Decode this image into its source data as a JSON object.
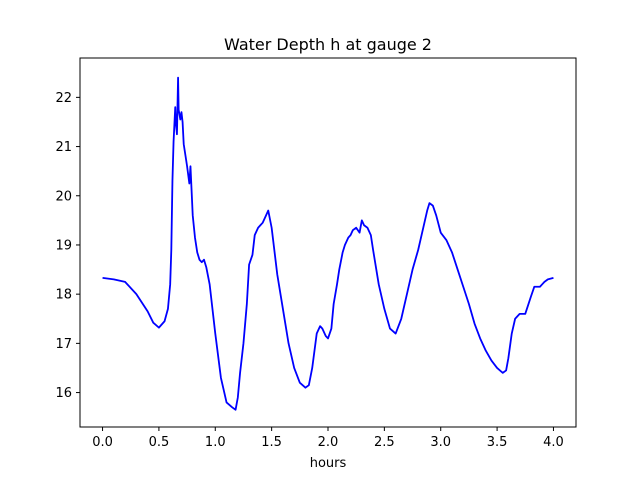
{
  "chart_data": {
    "type": "line",
    "title": "Water Depth h at gauge 2",
    "xlabel": "hours",
    "ylabel": "",
    "xlim": [
      -0.2,
      4.2
    ],
    "ylim": [
      15.3,
      22.8
    ],
    "xticks": [
      0.0,
      0.5,
      1.0,
      1.5,
      2.0,
      2.5,
      3.0,
      3.5,
      4.0
    ],
    "xtick_labels": [
      "0.0",
      "0.5",
      "1.0",
      "1.5",
      "2.0",
      "2.5",
      "3.0",
      "3.5",
      "4.0"
    ],
    "yticks": [
      16,
      17,
      18,
      19,
      20,
      21,
      22
    ],
    "ytick_labels": [
      "16",
      "17",
      "18",
      "19",
      "20",
      "21",
      "22"
    ],
    "grid": false,
    "series": [
      {
        "color": "#0000ff",
        "x": [
          0.0,
          0.1,
          0.2,
          0.3,
          0.4,
          0.45,
          0.5,
          0.55,
          0.58,
          0.6,
          0.61,
          0.615,
          0.62,
          0.63,
          0.645,
          0.65,
          0.66,
          0.67,
          0.675,
          0.69,
          0.7,
          0.71,
          0.72,
          0.73,
          0.75,
          0.77,
          0.78,
          0.79,
          0.8,
          0.82,
          0.84,
          0.86,
          0.88,
          0.9,
          0.92,
          0.95,
          1.0,
          1.05,
          1.1,
          1.15,
          1.18,
          1.2,
          1.22,
          1.25,
          1.28,
          1.3,
          1.33,
          1.35,
          1.38,
          1.4,
          1.42,
          1.45,
          1.47,
          1.5,
          1.55,
          1.6,
          1.65,
          1.7,
          1.75,
          1.8,
          1.83,
          1.86,
          1.9,
          1.93,
          1.95,
          1.98,
          2.0,
          2.03,
          2.05,
          2.08,
          2.1,
          2.13,
          2.15,
          2.18,
          2.2,
          2.22,
          2.25,
          2.28,
          2.3,
          2.32,
          2.35,
          2.38,
          2.4,
          2.45,
          2.5,
          2.55,
          2.6,
          2.65,
          2.7,
          2.75,
          2.8,
          2.85,
          2.88,
          2.9,
          2.93,
          2.96,
          3.0,
          3.05,
          3.1,
          3.15,
          3.2,
          3.25,
          3.3,
          3.35,
          3.4,
          3.45,
          3.5,
          3.55,
          3.58,
          3.6,
          3.63,
          3.66,
          3.7,
          3.75,
          3.8,
          3.83,
          3.85,
          3.88,
          3.9,
          3.92,
          3.95,
          4.0
        ],
        "y": [
          18.33,
          18.3,
          18.25,
          18.0,
          17.65,
          17.42,
          17.32,
          17.45,
          17.7,
          18.2,
          18.9,
          19.6,
          20.3,
          21.1,
          21.8,
          21.5,
          21.25,
          22.4,
          21.75,
          21.55,
          21.7,
          21.5,
          21.05,
          20.9,
          20.6,
          20.25,
          20.6,
          20.1,
          19.6,
          19.15,
          18.85,
          18.7,
          18.65,
          18.7,
          18.55,
          18.2,
          17.2,
          16.3,
          15.8,
          15.7,
          15.65,
          15.9,
          16.4,
          17.0,
          17.8,
          18.6,
          18.8,
          19.2,
          19.35,
          19.4,
          19.45,
          19.6,
          19.7,
          19.35,
          18.4,
          17.7,
          17.0,
          16.5,
          16.2,
          16.1,
          16.15,
          16.5,
          17.2,
          17.35,
          17.3,
          17.15,
          17.1,
          17.3,
          17.8,
          18.2,
          18.5,
          18.85,
          19.0,
          19.15,
          19.2,
          19.3,
          19.35,
          19.25,
          19.5,
          19.4,
          19.35,
          19.2,
          18.9,
          18.2,
          17.7,
          17.3,
          17.2,
          17.5,
          18.0,
          18.5,
          18.9,
          19.4,
          19.7,
          19.85,
          19.8,
          19.6,
          19.25,
          19.1,
          18.85,
          18.5,
          18.15,
          17.8,
          17.4,
          17.1,
          16.85,
          16.65,
          16.5,
          16.4,
          16.45,
          16.7,
          17.2,
          17.5,
          17.6,
          17.6,
          17.95,
          18.15,
          18.15,
          18.15,
          18.2,
          18.25,
          18.3,
          18.33
        ]
      }
    ]
  }
}
